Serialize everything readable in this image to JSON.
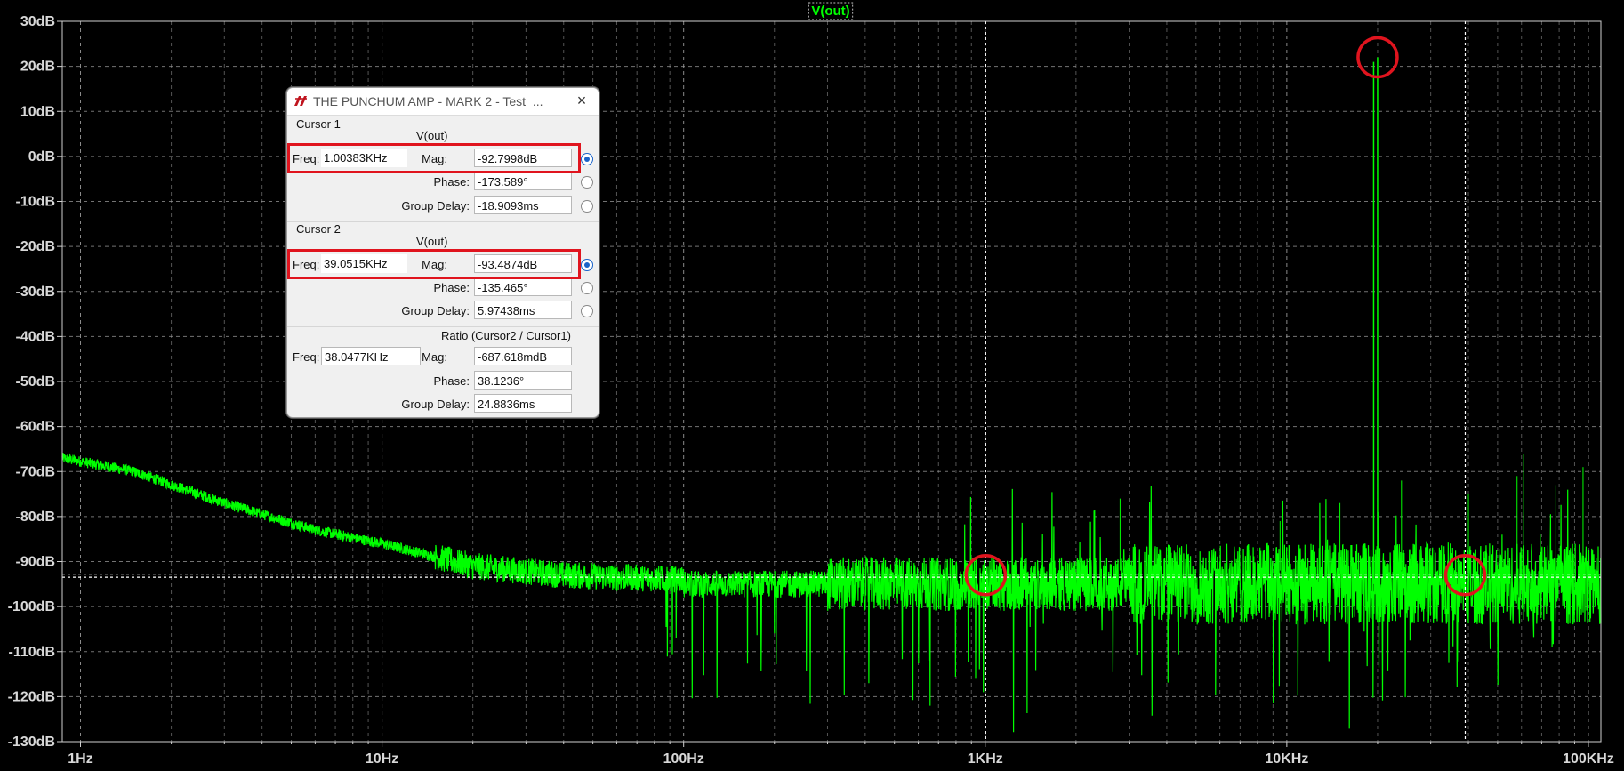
{
  "chart_data": {
    "type": "line",
    "title": "V(out)",
    "series": [
      {
        "name": "V(out)",
        "color": "#00ff00"
      }
    ],
    "x_scale": "log",
    "xlim": [
      0.87,
      110000
    ],
    "ylim": [
      -130,
      30
    ],
    "y_ticks": [
      "30dB",
      "20dB",
      "10dB",
      "0dB",
      "-10dB",
      "-20dB",
      "-30dB",
      "-40dB",
      "-50dB",
      "-60dB",
      "-70dB",
      "-80dB",
      "-90dB",
      "-100dB",
      "-110dB",
      "-120dB",
      "-130dB"
    ],
    "x_ticks": [
      "1Hz",
      "10Hz",
      "100Hz",
      "1KHz",
      "10KHz",
      "100KHz"
    ],
    "grid": true,
    "noise_floor_dB": -95,
    "low_freq_trend": [
      {
        "x": 0.87,
        "y": -67
      },
      {
        "x": 1.5,
        "y": -70
      },
      {
        "x": 3,
        "y": -77
      },
      {
        "x": 6,
        "y": -83
      },
      {
        "x": 10,
        "y": -86
      },
      {
        "x": 20,
        "y": -91
      },
      {
        "x": 40,
        "y": -93
      },
      {
        "x": 100,
        "y": -94
      }
    ],
    "peaks": [
      {
        "x": 20000,
        "y": 22
      },
      {
        "x": 19400,
        "y": 21
      }
    ],
    "cursor_lines": [
      {
        "x": 1003.83,
        "y": -92.7998
      },
      {
        "x": 39051.5,
        "y": -93.4874
      }
    ],
    "annotations": [
      {
        "shape": "circle",
        "color": "#e0141e",
        "x": 1003.83,
        "y": -93
      },
      {
        "shape": "circle",
        "color": "#e0141e",
        "x": 20000,
        "y": 22
      },
      {
        "shape": "circle",
        "color": "#e0141e",
        "x": 39051.5,
        "y": -93
      }
    ],
    "colors": {
      "background": "#000000",
      "grid": "#9a9a9a",
      "trace": "#00ff00"
    }
  },
  "dialog": {
    "title": "THE PUNCHUM AMP - MARK 2 -  Test_...",
    "close_icon": "×",
    "cursor1": {
      "group_label": "Cursor 1",
      "trace": "V(out)",
      "freq_label": "Freq:",
      "freq": "1.00383KHz",
      "mag_label": "Mag:",
      "mag": "-92.7998dB",
      "phase_label": "Phase:",
      "phase": "-173.589°",
      "gd_label": "Group Delay:",
      "gd": "-18.9093ms"
    },
    "cursor2": {
      "group_label": "Cursor 2",
      "trace": "V(out)",
      "freq_label": "Freq:",
      "freq": "39.0515KHz",
      "mag_label": "Mag:",
      "mag": "-93.4874dB",
      "phase_label": "Phase:",
      "phase": "-135.465°",
      "gd_label": "Group Delay:",
      "gd": "5.97438ms"
    },
    "ratio": {
      "group_label": "Ratio (Cursor2 / Cursor1)",
      "freq_label": "Freq:",
      "freq": "38.0477KHz",
      "mag_label": "Mag:",
      "mag": "-687.618mdB",
      "phase_label": "Phase:",
      "phase": "38.1236°",
      "gd_label": "Group Delay:",
      "gd": "24.8836ms"
    }
  }
}
